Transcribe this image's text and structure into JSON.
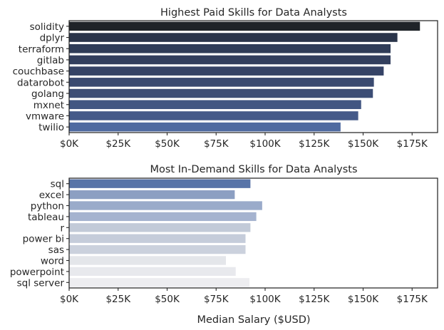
{
  "chart_data": [
    {
      "type": "bar",
      "orientation": "horizontal",
      "title": "Highest Paid Skills for Data Analysts",
      "xlabel": "",
      "ylabel": "",
      "categories": [
        "solidity",
        "dplyr",
        "terraform",
        "gitlab",
        "couchbase",
        "datarobot",
        "golang",
        "mxnet",
        "vmware",
        "twilio"
      ],
      "values": [
        179000,
        167500,
        164000,
        164000,
        160500,
        155500,
        155000,
        149000,
        147500,
        138500
      ],
      "colors": [
        "#1f2328",
        "#2a344a",
        "#2f3c58",
        "#323f5e",
        "#354366",
        "#3a4a70",
        "#3c4d75",
        "#425682",
        "#455a89",
        "#4f6aa0"
      ],
      "xlim": [
        0,
        188000
      ],
      "xticks": [
        0,
        25000,
        50000,
        75000,
        100000,
        125000,
        150000,
        175000
      ],
      "xtick_labels": [
        "$0K",
        "$25K",
        "$50K",
        "$75K",
        "$100K",
        "$125K",
        "$150K",
        "$175K"
      ],
      "grid": false,
      "legend": "none"
    },
    {
      "type": "bar",
      "orientation": "horizontal",
      "title": "Most In-Demand Skills for Data Analysts",
      "xlabel": "Median Salary ($USD)",
      "ylabel": "",
      "categories": [
        "sql",
        "excel",
        "python",
        "tableau",
        "r",
        "power bi",
        "sas",
        "word",
        "powerpoint",
        "sql server"
      ],
      "values": [
        92500,
        84500,
        98500,
        95500,
        92500,
        90000,
        90000,
        80000,
        85000,
        92000
      ],
      "colors": [
        "#5874a8",
        "#8c9fc2",
        "#9aabca",
        "#a5b3cf",
        "#c2cad8",
        "#c5ccda",
        "#cbd1dd",
        "#e4e6ea",
        "#e8e9ed",
        "#ededf0"
      ],
      "xlim": [
        0,
        188000
      ],
      "xticks": [
        0,
        25000,
        50000,
        75000,
        100000,
        125000,
        150000,
        175000
      ],
      "xtick_labels": [
        "$0K",
        "$25K",
        "$50K",
        "$75K",
        "$100K",
        "$125K",
        "$150K",
        "$175K"
      ],
      "grid": false,
      "legend": "none"
    }
  ]
}
